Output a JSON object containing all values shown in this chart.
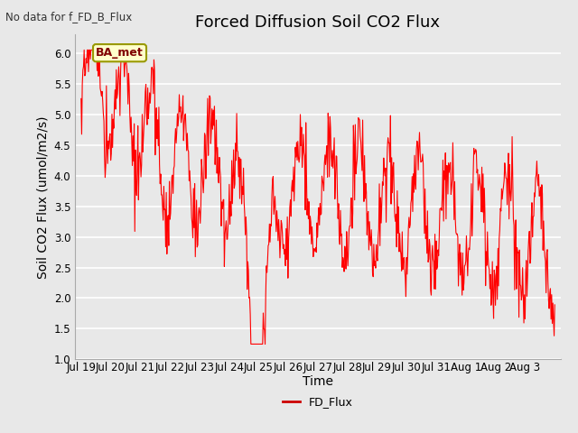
{
  "title": "Forced Diffusion Soil CO2 Flux",
  "xlabel": "Time",
  "ylabel": "Soil CO2 Flux (umol/m2/s)",
  "no_data_label": "No data for f_FD_B_Flux",
  "legend_label": "FD_Flux",
  "ba_met_label": "BA_met",
  "line_color": "#ff0000",
  "legend_line_color": "#cc0000",
  "ylim": [
    1.0,
    6.3
  ],
  "yticks": [
    1.0,
    1.5,
    2.0,
    2.5,
    3.0,
    3.5,
    4.0,
    4.5,
    5.0,
    5.5,
    6.0
  ],
  "background_color": "#e8e8e8",
  "plot_bg_color": "#e8e8e8",
  "ba_met_fg": "#800000",
  "ba_met_bg": "#ffffcc",
  "ba_met_border": "#999900",
  "title_fontsize": 13,
  "axis_fontsize": 10,
  "tick_fontsize": 8.5,
  "no_data_fontsize": 8.5,
  "grid_color": "#ffffff",
  "x_tick_labels": [
    "Jul 19",
    "Jul 20",
    "Jul 21",
    "Jul 22",
    "Jul 23",
    "Jul 24",
    "Jul 25",
    "Jul 26",
    "Jul 27",
    "Jul 28",
    "Jul 29",
    "Jul 30",
    "Jul 31",
    "Aug 1",
    "Aug 2",
    "Aug 3"
  ],
  "n_days": 16
}
